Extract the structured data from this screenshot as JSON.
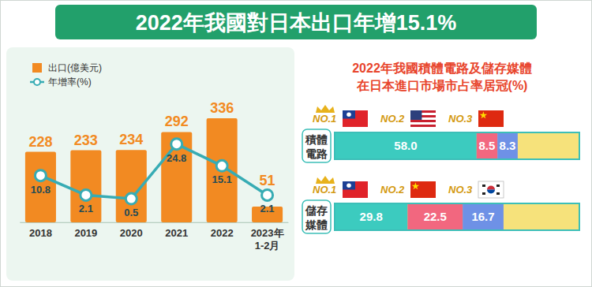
{
  "title": "2022年我國對日本出口年增15.1%",
  "chart_data": [
    {
      "type": "bar",
      "categories": [
        "2018",
        "2019",
        "2020",
        "2021",
        "2022",
        "2023年1-2月"
      ],
      "series": [
        {
          "name": "出口(億美元)",
          "type": "bar",
          "color": "#f28a22",
          "values": [
            228,
            233,
            234,
            292,
            336,
            51
          ]
        },
        {
          "name": "年增率(%)",
          "type": "line",
          "axis": "y2",
          "color": "#37acb4",
          "marker": "circle",
          "values": [
            10.8,
            2.1,
            0.5,
            24.8,
            15.1,
            2.1
          ]
        }
      ],
      "ylim": [
        0,
        400
      ],
      "yticks": [
        0
      ],
      "y2lim": [
        -10,
        45
      ],
      "data_labels": true,
      "tick_labels": "x",
      "legend": "top-left"
    },
    {
      "type": "bar",
      "title": "2022年我國積體電路及儲存媒體",
      "subtitle": "在日本進口市場市占率居冠(%)",
      "orientation": "horizontal",
      "stacked": true,
      "categories": [
        "積體電路",
        "儲存媒體"
      ],
      "series": [
        {
          "name": "NO.1",
          "color": "#3ccbbf",
          "values": [
            58.0,
            29.8
          ],
          "value_labels": [
            "58.0",
            "29.8"
          ]
        },
        {
          "name": "NO.2",
          "color": "#f2677f",
          "values": [
            8.5,
            22.5
          ]
        },
        {
          "name": "NO.3",
          "color": "#6e91e6",
          "values": [
            8.3,
            16.7
          ]
        }
      ],
      "xlim": [
        0,
        100
      ],
      "data_labels": true,
      "tick_labels": "y"
    }
  ]
}
